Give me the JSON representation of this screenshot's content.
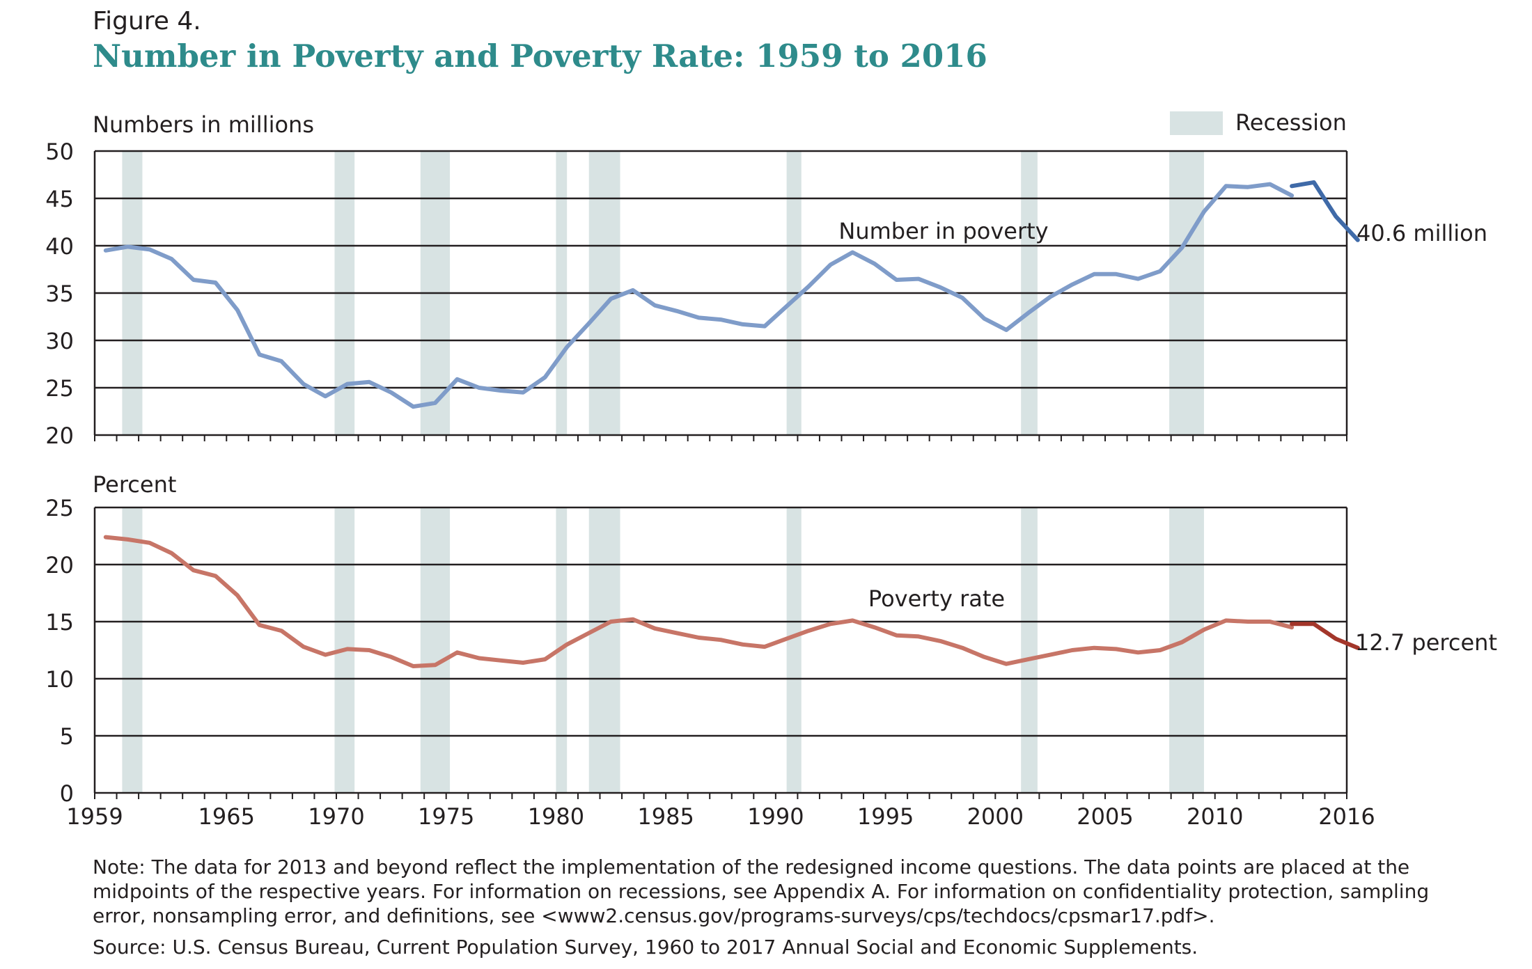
{
  "figure": {
    "label": "Figure 4.",
    "title": "Number in Poverty and Poverty Rate: 1959 to 2016",
    "note": "Note: The data for 2013 and beyond reflect the implementation of the redesigned income questions. The data points are placed at the midpoints of the respective years. For information on recessions, see Appendix A. For information on confidentiality protection, sampling error, nonsampling error, and definitions, see <www2.census.gov/programs-surveys/cps/techdocs/cpsmar17.pdf>.",
    "source": "Source: U.S. Census Bureau, Current Population Survey, 1960 to 2017 Annual Social and Economic Supplements."
  },
  "colors": {
    "number_old": "#7f9cc9",
    "number_new": "#3f6aa8",
    "rate_old": "#c77567",
    "rate_new": "#a3362a",
    "recession": "#d8e3e3",
    "grid": "#231f20"
  },
  "chart_data": [
    {
      "type": "line",
      "ylabel": "Numbers in millions",
      "ylim": [
        20,
        50
      ],
      "yticks": [
        20,
        25,
        30,
        35,
        40,
        45,
        50
      ],
      "xlim": [
        1959,
        2016
      ],
      "xticks": [
        1959,
        1965,
        1970,
        1975,
        1980,
        1985,
        1990,
        1995,
        2000,
        2005,
        2010,
        2016
      ],
      "grid": true,
      "legend": {
        "label": "Recession",
        "position": "top-right"
      },
      "recessions": [
        [
          1960.25,
          1961.17
        ],
        [
          1969.92,
          1970.83
        ],
        [
          1973.83,
          1975.17
        ],
        [
          1980.0,
          1980.5
        ],
        [
          1981.5,
          1982.92
        ],
        [
          1990.5,
          1991.17
        ],
        [
          2001.17,
          2001.92
        ],
        [
          2007.92,
          2009.5
        ]
      ],
      "series": [
        {
          "name": "Number in poverty",
          "x": [
            1959,
            1960,
            1961,
            1962,
            1963,
            1964,
            1965,
            1966,
            1967,
            1968,
            1969,
            1970,
            1971,
            1972,
            1973,
            1974,
            1975,
            1976,
            1977,
            1978,
            1979,
            1980,
            1981,
            1982,
            1983,
            1984,
            1985,
            1986,
            1987,
            1988,
            1989,
            1990,
            1991,
            1992,
            1993,
            1994,
            1995,
            1996,
            1997,
            1998,
            1999,
            2000,
            2001,
            2002,
            2003,
            2004,
            2005,
            2006,
            2007,
            2008,
            2009,
            2010,
            2011,
            2012,
            2013
          ],
          "values": [
            39.5,
            39.9,
            39.6,
            38.6,
            36.4,
            36.1,
            33.2,
            28.5,
            27.8,
            25.4,
            24.1,
            25.4,
            25.6,
            24.5,
            23.0,
            23.4,
            25.9,
            25.0,
            24.7,
            24.5,
            26.1,
            29.3,
            31.8,
            34.4,
            35.3,
            33.7,
            33.1,
            32.4,
            32.2,
            31.7,
            31.5,
            33.6,
            35.7,
            38.0,
            39.3,
            38.1,
            36.4,
            36.5,
            35.6,
            34.5,
            32.3,
            31.1,
            32.9,
            34.6,
            35.9,
            37.0,
            37.0,
            36.5,
            37.3,
            39.8,
            43.6,
            46.3,
            46.2,
            46.5,
            45.3
          ],
          "end_label": ""
        },
        {
          "name": "",
          "x": [
            2013,
            2014,
            2015,
            2016
          ],
          "values": [
            46.3,
            46.7,
            43.1,
            40.6
          ],
          "end_label": "40.6 million"
        }
      ]
    },
    {
      "type": "line",
      "ylabel": "Percent",
      "ylim": [
        0,
        25
      ],
      "yticks": [
        0,
        5,
        10,
        15,
        20,
        25
      ],
      "xlim": [
        1959,
        2016
      ],
      "xticks": [
        1959,
        1965,
        1970,
        1975,
        1980,
        1985,
        1990,
        1995,
        2000,
        2005,
        2010,
        2016
      ],
      "grid": true,
      "recessions": [
        [
          1960.25,
          1961.17
        ],
        [
          1969.92,
          1970.83
        ],
        [
          1973.83,
          1975.17
        ],
        [
          1980.0,
          1980.5
        ],
        [
          1981.5,
          1982.92
        ],
        [
          1990.5,
          1991.17
        ],
        [
          2001.17,
          2001.92
        ],
        [
          2007.92,
          2009.5
        ]
      ],
      "series": [
        {
          "name": "Poverty rate",
          "x": [
            1959,
            1960,
            1961,
            1962,
            1963,
            1964,
            1965,
            1966,
            1967,
            1968,
            1969,
            1970,
            1971,
            1972,
            1973,
            1974,
            1975,
            1976,
            1977,
            1978,
            1979,
            1980,
            1981,
            1982,
            1983,
            1984,
            1985,
            1986,
            1987,
            1988,
            1989,
            1990,
            1991,
            1992,
            1993,
            1994,
            1995,
            1996,
            1997,
            1998,
            1999,
            2000,
            2001,
            2002,
            2003,
            2004,
            2005,
            2006,
            2007,
            2008,
            2009,
            2010,
            2011,
            2012,
            2013
          ],
          "values": [
            22.4,
            22.2,
            21.9,
            21.0,
            19.5,
            19.0,
            17.3,
            14.7,
            14.2,
            12.8,
            12.1,
            12.6,
            12.5,
            11.9,
            11.1,
            11.2,
            12.3,
            11.8,
            11.6,
            11.4,
            11.7,
            13.0,
            14.0,
            15.0,
            15.2,
            14.4,
            14.0,
            13.6,
            13.4,
            13.0,
            12.8,
            13.5,
            14.2,
            14.8,
            15.1,
            14.5,
            13.8,
            13.7,
            13.3,
            12.7,
            11.9,
            11.3,
            11.7,
            12.1,
            12.5,
            12.7,
            12.6,
            12.3,
            12.5,
            13.2,
            14.3,
            15.1,
            15.0,
            15.0,
            14.5
          ],
          "end_label": ""
        },
        {
          "name": "",
          "x": [
            2013,
            2014,
            2015,
            2016
          ],
          "values": [
            14.8,
            14.8,
            13.5,
            12.7
          ],
          "end_label": "12.7 percent"
        }
      ]
    }
  ]
}
